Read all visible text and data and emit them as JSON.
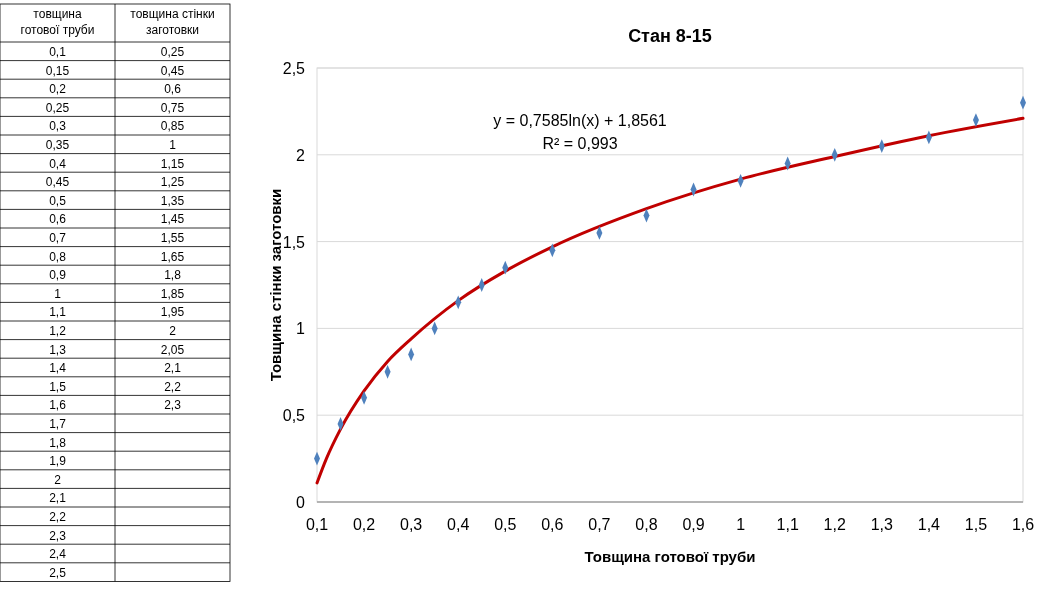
{
  "chart_data": {
    "type": "scatter",
    "title": "Стан 8-15",
    "xlabel": "Товщина готової труби",
    "ylabel": "Товщина стінки заготовки",
    "xlim": [
      0.1,
      1.6
    ],
    "xticks": [
      {
        "value": 0.1,
        "label": "0,1"
      },
      {
        "value": 0.2,
        "label": "0,2"
      },
      {
        "value": 0.3,
        "label": "0,3"
      },
      {
        "value": 0.4,
        "label": "0,4"
      },
      {
        "value": 0.5,
        "label": "0,5"
      },
      {
        "value": 0.6,
        "label": "0,6"
      },
      {
        "value": 0.7,
        "label": "0,7"
      },
      {
        "value": 0.8,
        "label": "0,8"
      },
      {
        "value": 0.9,
        "label": "0,9"
      },
      1,
      {
        "value": 1.1,
        "label": "1,1"
      },
      {
        "value": 1.2,
        "label": "1,2"
      },
      {
        "value": 1.3,
        "label": "1,3"
      },
      {
        "value": 1.4,
        "label": "1,4"
      },
      {
        "value": 1.5,
        "label": "1,5"
      },
      {
        "value": 1.6,
        "label": "1,6"
      }
    ],
    "ylim": [
      0,
      2.5
    ],
    "yticks": [
      0,
      {
        "value": 0.5,
        "label": "0,5"
      },
      1,
      {
        "value": 1.5,
        "label": "1,5"
      },
      2,
      {
        "value": 2.5,
        "label": "2,5"
      }
    ],
    "grid": "y",
    "marker": "diamond",
    "series": [
      {
        "color": "#4f81bd",
        "x": [
          0.1,
          0.15,
          0.2,
          0.25,
          0.3,
          0.35,
          0.4,
          0.45,
          0.5,
          0.6,
          0.7,
          0.8,
          0.9,
          1,
          1.1,
          1.2,
          1.3,
          1.4,
          1.5,
          1.6
        ],
        "values": [
          0.25,
          0.45,
          0.6,
          0.75,
          0.85,
          1,
          1.15,
          1.25,
          1.35,
          1.45,
          1.55,
          1.65,
          1.8,
          1.85,
          1.95,
          2,
          2.05,
          2.1,
          2.2,
          2.3
        ]
      },
      {
        "type": "line",
        "marker": "none",
        "color": "#c00000",
        "x": [
          0.1,
          0.12,
          0.15,
          0.2,
          0.25,
          0.3,
          0.4,
          0.5,
          0.6,
          0.8,
          1,
          1.2,
          1.4,
          1.6
        ],
        "values": [
          0.11,
          0.25,
          0.42,
          0.64,
          0.81,
          0.94,
          1.16,
          1.33,
          1.47,
          1.69,
          1.86,
          1.99,
          2.11,
          2.21
        ]
      }
    ],
    "annotations": [
      "товщина готової труби",
      "товщина стінки заготовки",
      "y = 0,7585ln(x) + 1,8561",
      "R² = 0,993",
      "0,1",
      "0,25",
      "0,15",
      "0,45",
      "0,2",
      "0,6",
      "0,25",
      "0,75",
      "0,3",
      "0,85",
      "0,35",
      "1",
      "0,4",
      "1,15",
      "0,45",
      "1,25",
      "0,5",
      "1,35",
      "0,6",
      "1,45",
      "0,7",
      "1,55",
      "0,8",
      "1,65",
      "0,9",
      "1,8",
      "1",
      "1,85",
      "1,1",
      "1,95",
      "1,2",
      "2",
      "1,3",
      "2,05",
      "1,4",
      "2,1",
      "1,5",
      "2,2",
      "1,6",
      "2,3",
      "1,7",
      "1,8",
      "1,9",
      "2",
      "2,1",
      "2,2",
      "2,3",
      "2,4",
      "2,5"
    ]
  }
}
